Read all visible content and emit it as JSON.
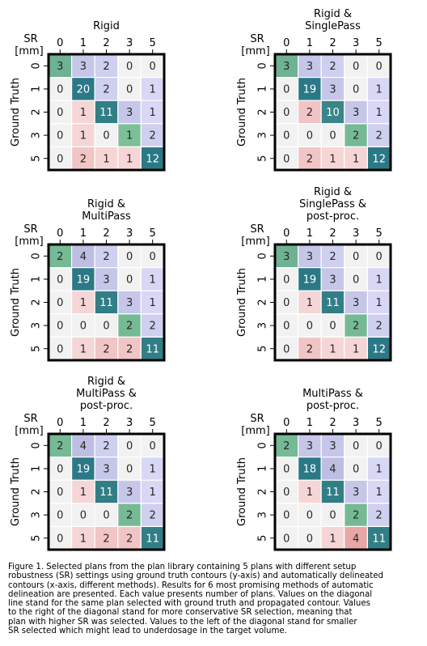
{
  "chart_data": {
    "type": "heatmap",
    "x_axis_label": [
      "SR",
      "[mm]"
    ],
    "y_axis_label": "Ground Truth",
    "x_ticks": [
      "0",
      "1",
      "2",
      "3",
      "5"
    ],
    "y_ticks": [
      "0",
      "1",
      "2",
      "3",
      "5"
    ],
    "panels": [
      {
        "title": [
          "Rigid"
        ],
        "values": [
          [
            3,
            3,
            2,
            0,
            0
          ],
          [
            0,
            20,
            2,
            0,
            1
          ],
          [
            0,
            1,
            11,
            3,
            1
          ],
          [
            0,
            1,
            0,
            1,
            2
          ],
          [
            0,
            2,
            1,
            1,
            12
          ]
        ]
      },
      {
        "title": [
          "Rigid &",
          "SinglePass"
        ],
        "values": [
          [
            3,
            3,
            2,
            0,
            0
          ],
          [
            0,
            19,
            3,
            0,
            1
          ],
          [
            0,
            2,
            10,
            3,
            1
          ],
          [
            0,
            0,
            0,
            2,
            2
          ],
          [
            0,
            2,
            1,
            1,
            12
          ]
        ]
      },
      {
        "title": [
          "Rigid &",
          "MultiPass"
        ],
        "values": [
          [
            2,
            4,
            2,
            0,
            0
          ],
          [
            0,
            19,
            3,
            0,
            1
          ],
          [
            0,
            1,
            11,
            3,
            1
          ],
          [
            0,
            0,
            0,
            2,
            2
          ],
          [
            0,
            1,
            2,
            2,
            11
          ]
        ]
      },
      {
        "title": [
          "Rigid &",
          "SinglePass &",
          "post-proc."
        ],
        "values": [
          [
            3,
            3,
            2,
            0,
            0
          ],
          [
            0,
            19,
            3,
            0,
            1
          ],
          [
            0,
            1,
            11,
            3,
            1
          ],
          [
            0,
            0,
            0,
            2,
            2
          ],
          [
            0,
            2,
            1,
            1,
            12
          ]
        ]
      },
      {
        "title": [
          "Rigid &",
          "MultiPass &",
          "post-proc."
        ],
        "values": [
          [
            2,
            4,
            2,
            0,
            0
          ],
          [
            0,
            19,
            3,
            0,
            1
          ],
          [
            0,
            1,
            11,
            3,
            1
          ],
          [
            0,
            0,
            0,
            2,
            2
          ],
          [
            0,
            1,
            2,
            2,
            11
          ]
        ]
      },
      {
        "title": [
          "MultiPass &",
          "post-proc."
        ],
        "values": [
          [
            2,
            3,
            3,
            0,
            0
          ],
          [
            0,
            18,
            4,
            0,
            1
          ],
          [
            0,
            1,
            11,
            3,
            1
          ],
          [
            0,
            0,
            0,
            2,
            2
          ],
          [
            0,
            0,
            1,
            4,
            11
          ]
        ]
      }
    ],
    "colors": {
      "zero": "#f2f2f2",
      "diag_low": "#7dbf96",
      "diag_high": "#2b7886",
      "above_low": "#d8d7f5",
      "above_high": "#2b3a7f",
      "below_low": "#f5d5d5",
      "below_high": "#e8a6a6"
    }
  },
  "caption": "Figure 1. Selected plans from the plan library containing 5 plans with different setup\nrobustness (SR) settings using ground truth contours (y-axis) and automatically delineated\ncontours (x-axis, different methods). Results for 6 most promising methods of automatic\ndelineation are presented. Each value presents number of plans. Values on the diagonal\nline stand for the same plan selected with ground truth and propagated contour. Values\nto the right of the diagonal stand for more conservative SR selection, meaning that\nplan with higher SR was selected. Values to the left of the diagonal stand for smaller\nSR selected which might lead to underdosage in the target volume."
}
